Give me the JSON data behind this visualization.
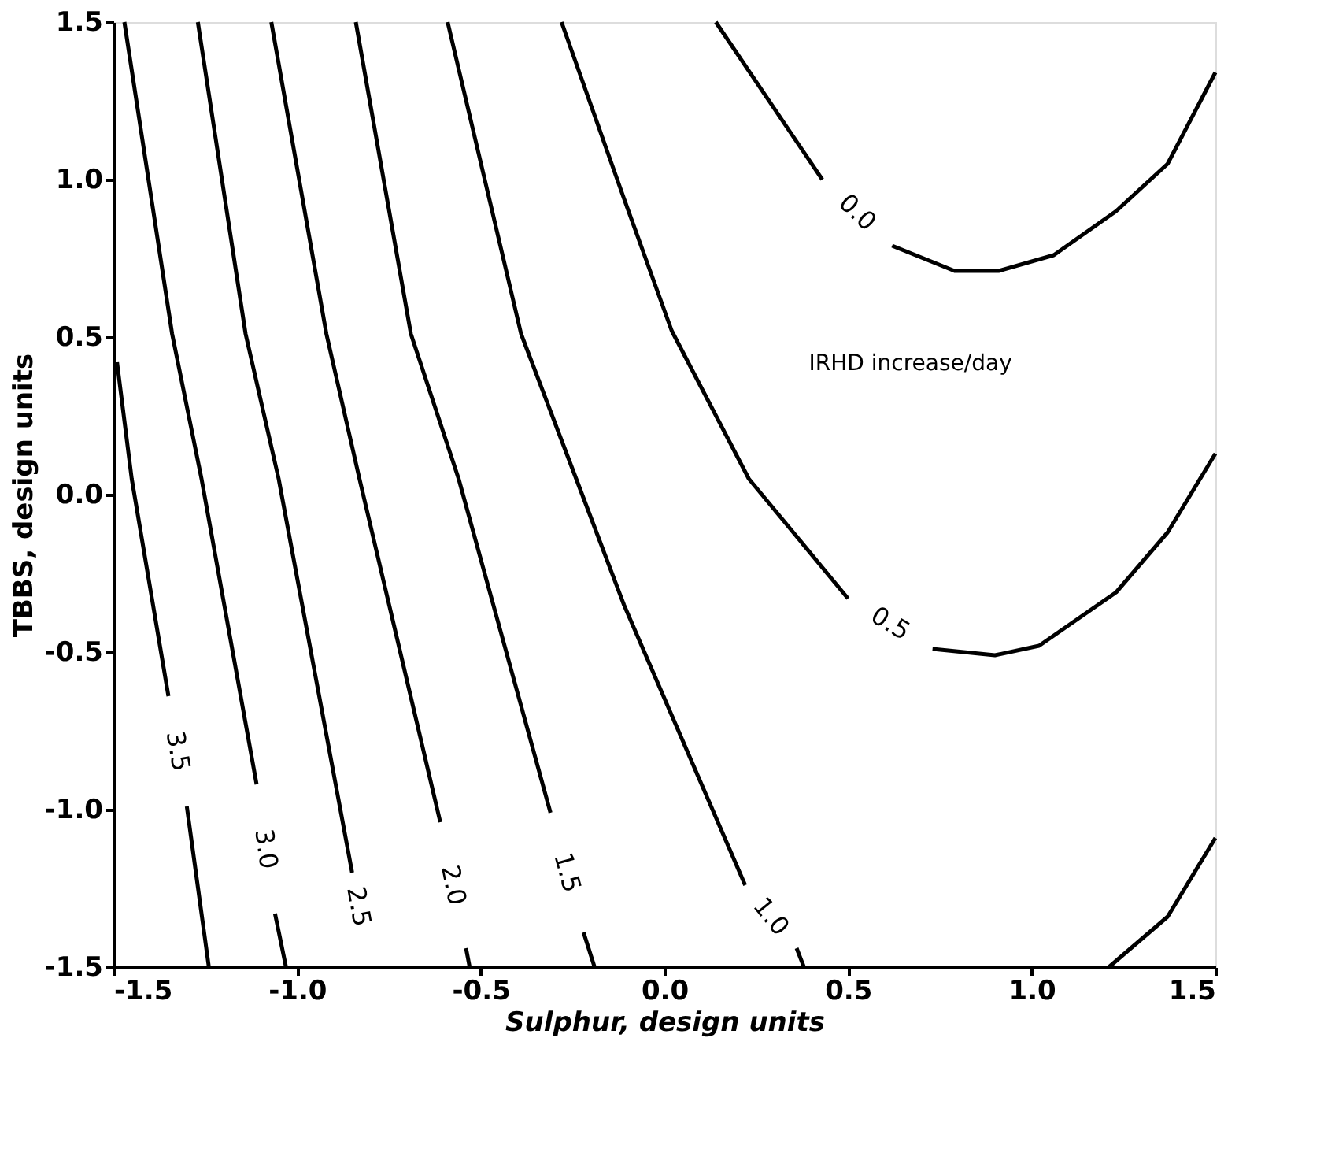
{
  "chart_data": {
    "type": "line",
    "xlabel": "Sulphur, design units",
    "ylabel": "TBBS, design units",
    "xlim": [
      -1.5,
      1.5
    ],
    "ylim": [
      -1.5,
      1.5
    ],
    "xticks": [
      {
        "value": -1.5,
        "label": "-1.5"
      },
      {
        "value": -1.0,
        "label": "-1.0"
      },
      {
        "value": -0.5,
        "label": "-0.5"
      },
      {
        "value": 0.0,
        "label": "0.0"
      },
      {
        "value": 0.5,
        "label": "0.5"
      },
      {
        "value": 1.0,
        "label": "1.0"
      },
      {
        "value": 1.5,
        "label": "1.5"
      }
    ],
    "yticks": [
      {
        "value": -1.5,
        "label": "-1.5"
      },
      {
        "value": -1.0,
        "label": "-1.0"
      },
      {
        "value": -0.5,
        "label": "-0.5"
      },
      {
        "value": 0.0,
        "label": "0.0"
      },
      {
        "value": 0.5,
        "label": "0.5"
      },
      {
        "value": 1.0,
        "label": "1.0"
      },
      {
        "value": 1.5,
        "label": "1.5"
      }
    ],
    "grid": false,
    "marker": "none",
    "line_style": "solid",
    "annotations": [
      "IRHD increase/day"
    ],
    "series": [
      {
        "name": "3.5",
        "color": "#000000",
        "x": [
          -1.49,
          -1.45,
          -1.35,
          null,
          -1.3,
          -1.24
        ],
        "values": [
          0.42,
          0.05,
          -0.64,
          null,
          -0.99,
          -1.5
        ]
      },
      {
        "name": "3.0",
        "color": "#000000",
        "x": [
          -1.47,
          -1.34,
          -1.26,
          -1.11,
          null,
          -1.06,
          -1.03
        ],
        "values": [
          1.5,
          0.51,
          0.05,
          -0.92,
          null,
          -1.33,
          -1.5
        ]
      },
      {
        "name": "2.5",
        "color": "#000000",
        "x": [
          -1.27,
          -1.14,
          -1.05,
          -0.85
        ],
        "values": [
          1.5,
          0.51,
          0.05,
          -1.2
        ]
      },
      {
        "name": "2.0",
        "color": "#000000",
        "x": [
          -1.07,
          -0.92,
          -0.83,
          -0.61,
          null,
          -0.54,
          -0.53
        ],
        "values": [
          1.5,
          0.51,
          0.05,
          -1.04,
          null,
          -1.44,
          -1.5
        ]
      },
      {
        "name": "1.5",
        "color": "#000000",
        "x": [
          -0.84,
          -0.69,
          -0.56,
          -0.31,
          null,
          -0.22,
          -0.19
        ],
        "values": [
          1.5,
          0.51,
          0.05,
          -1.01,
          null,
          -1.39,
          -1.5
        ]
      },
      {
        "name": "1.0",
        "color": "#000000",
        "x": [
          -0.59,
          -0.39,
          -0.24,
          -0.11,
          0.22,
          null,
          0.36,
          0.38
        ],
        "values": [
          1.5,
          0.51,
          0.05,
          -0.35,
          -1.24,
          null,
          -1.44,
          -1.5
        ]
      },
      {
        "name": "0.5",
        "color": "#000000",
        "x": [
          -0.28,
          -0.11,
          0.02,
          0.23,
          0.5,
          null,
          0.73,
          0.9,
          1.02,
          1.23,
          1.37,
          1.5
        ],
        "values": [
          1.5,
          0.94,
          0.52,
          0.05,
          -0.33,
          null,
          -0.49,
          -0.51,
          -0.48,
          -0.31,
          -0.12,
          0.13
        ]
      },
      {
        "name": "0.0",
        "color": "#000000",
        "x": [
          0.14,
          0.43,
          null,
          0.62,
          0.79,
          0.91,
          1.06,
          1.23,
          1.37,
          1.5
        ],
        "values": [
          1.5,
          1.0,
          null,
          0.79,
          0.71,
          0.71,
          0.76,
          0.9,
          1.05,
          1.34
        ]
      },
      {
        "color": "#000000",
        "x": [
          1.5,
          1.37,
          1.21
        ],
        "values": [
          -1.09,
          -1.34,
          -1.5
        ]
      }
    ]
  }
}
